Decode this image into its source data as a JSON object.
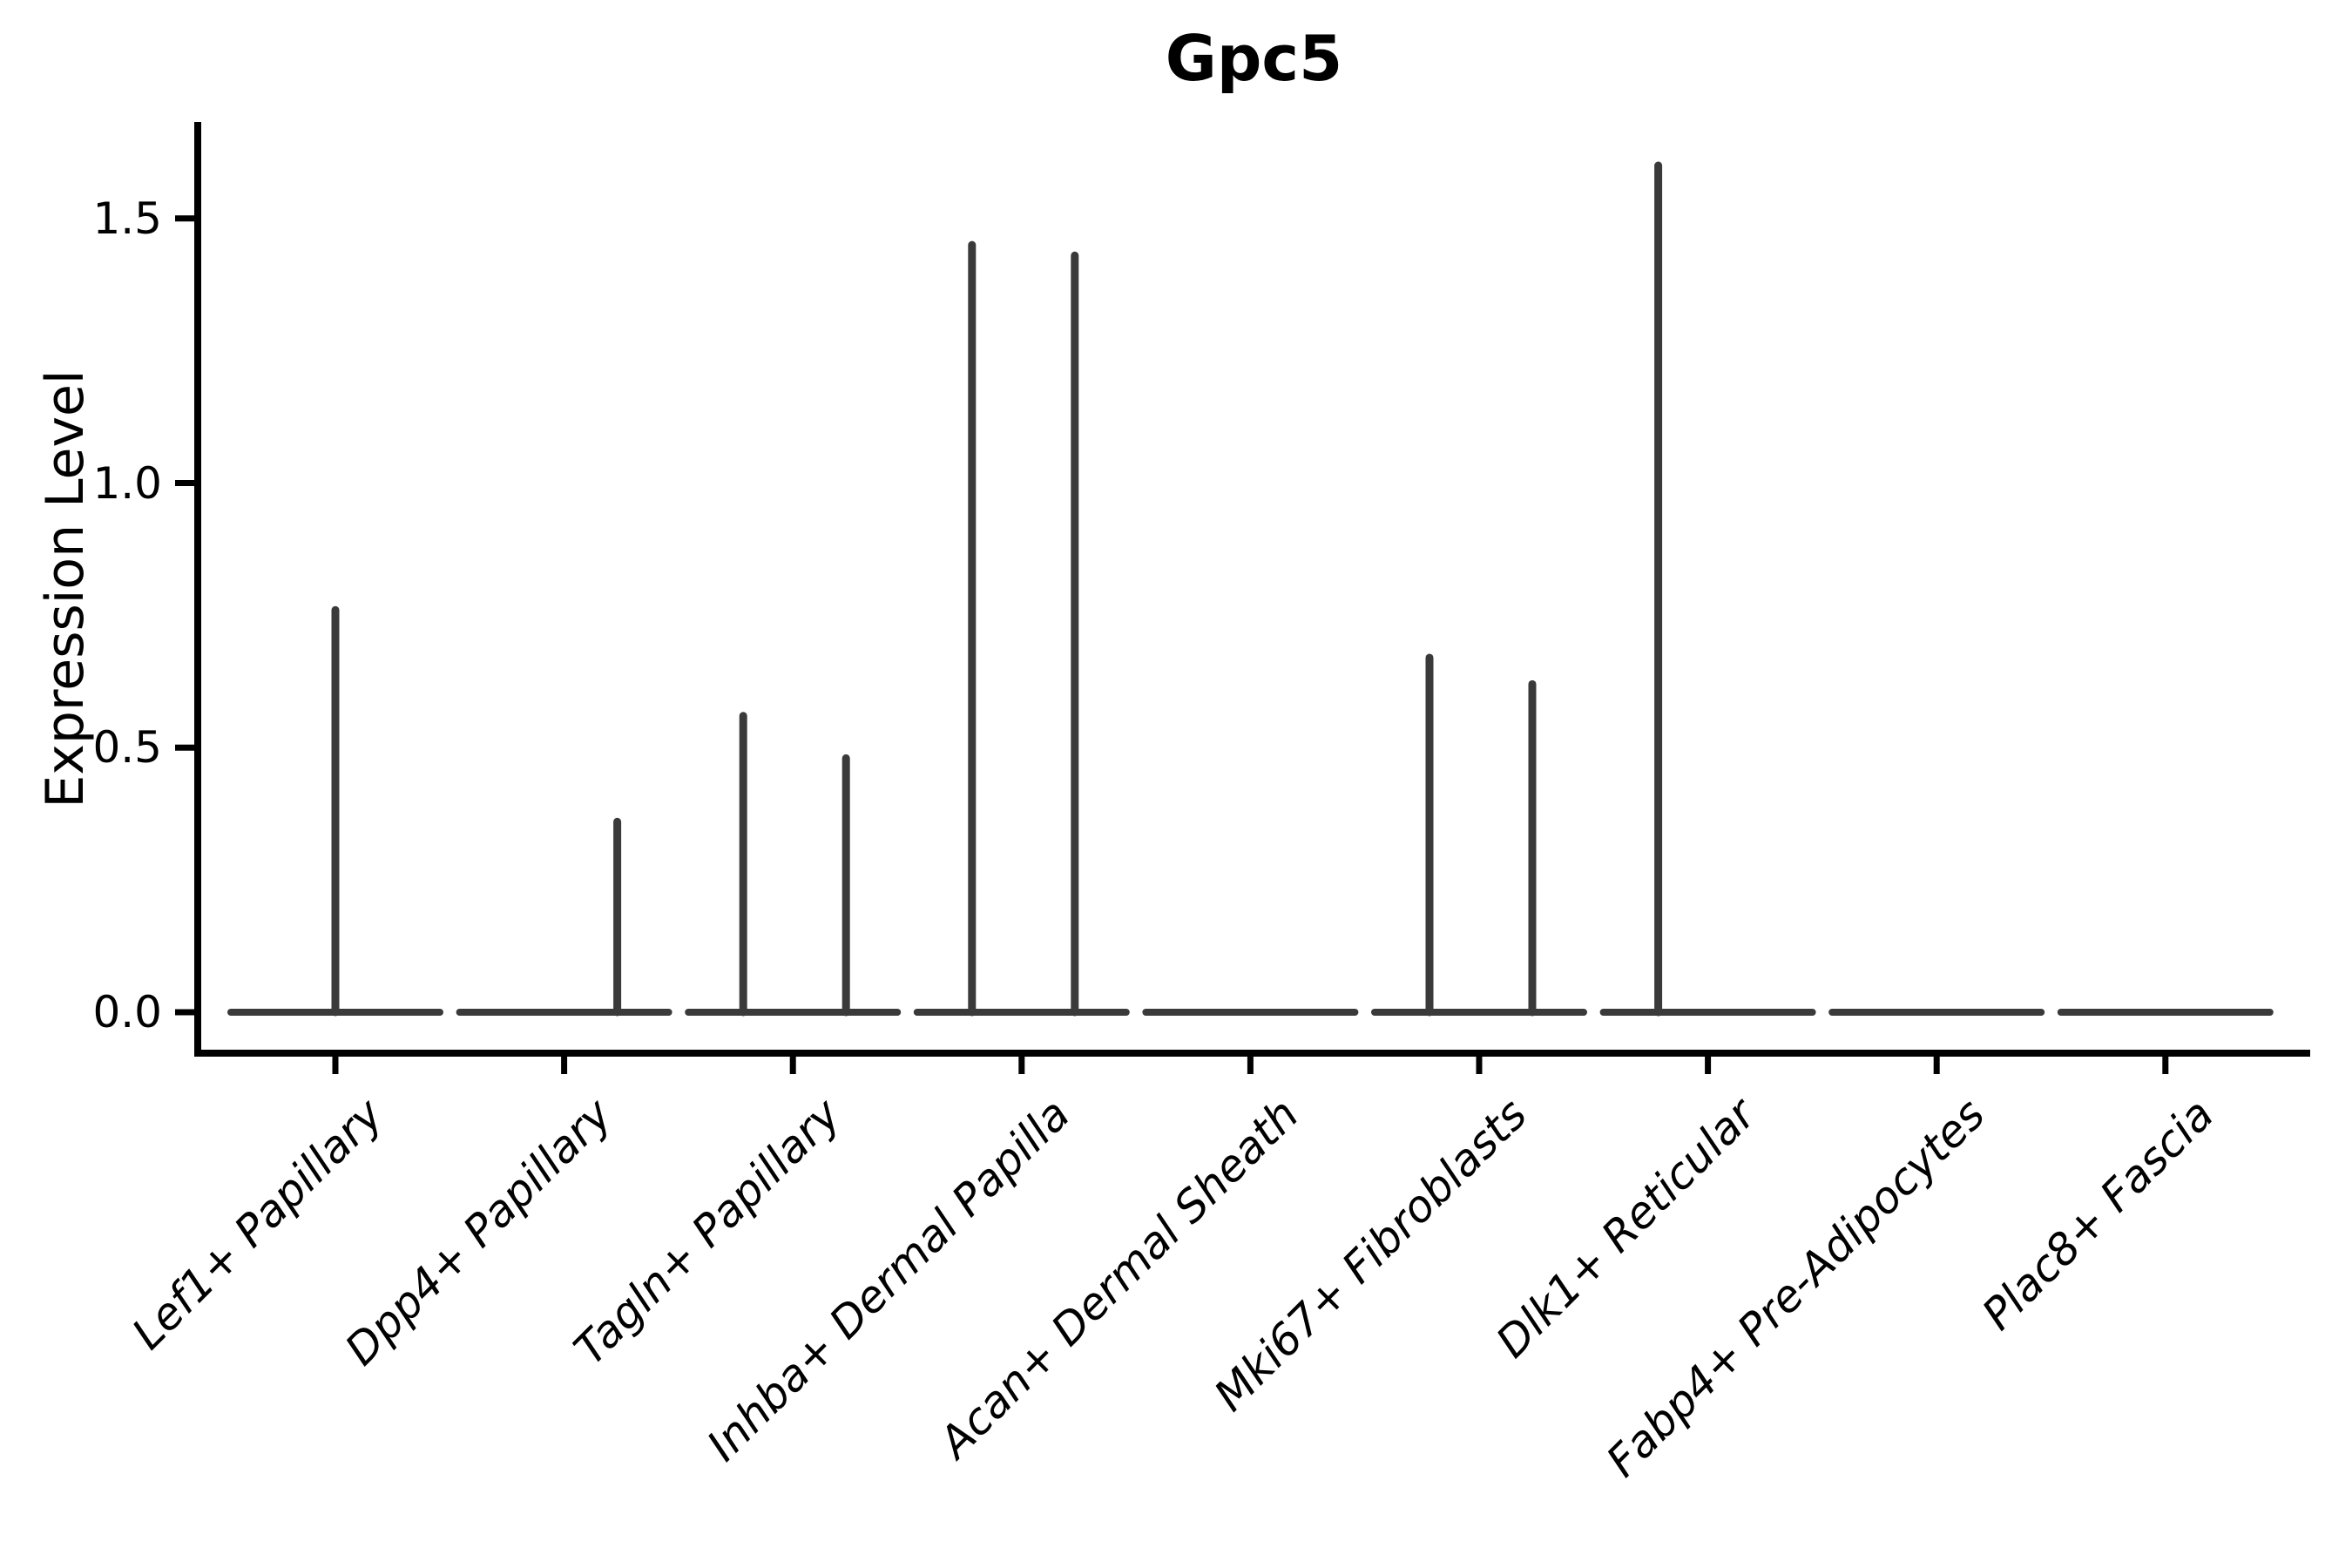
{
  "chart": {
    "title": "Gpc5",
    "ylabel": "Expression Level"
  },
  "chart_data": {
    "type": "violin",
    "title": "Gpc5",
    "xlabel": "",
    "ylabel": "Expression Level",
    "ylim": [
      -0.08,
      1.68
    ],
    "grid": false,
    "legend": "none",
    "yticks": [
      {
        "label": "0.0",
        "value": 0.0
      },
      {
        "label": "0.5",
        "value": 0.5
      },
      {
        "label": "1.0",
        "value": 1.0
      },
      {
        "label": "1.5",
        "value": 1.5
      }
    ],
    "categories": [
      "Lef1+ Papillary",
      "Dpp4+ Papillary",
      "Tagln+ Papillary",
      "Inhba+ Dermal Papilla",
      "Acan+ Dermal Sheath",
      "Mki67+ Fibroblasts",
      "Dlk1+ Reticular",
      "Fabp4+ Pre-Adipocytes",
      "Plac8+ Fascia"
    ],
    "violins": [
      {
        "label": "Lef1+ Papillary",
        "baseline_value": 0,
        "spikes": [
          {
            "side": "center",
            "value": 0.76
          }
        ]
      },
      {
        "label": "Dpp4+ Papillary",
        "baseline_value": 0,
        "spikes": [
          {
            "side": "right",
            "value": 0.36
          }
        ]
      },
      {
        "label": "Tagln+ Papillary",
        "baseline_value": 0,
        "spikes": [
          {
            "side": "left",
            "value": 0.56
          },
          {
            "side": "right",
            "value": 0.48
          }
        ]
      },
      {
        "label": "Inhba+ Dermal Papilla",
        "baseline_value": 0,
        "spikes": [
          {
            "side": "left",
            "value": 1.45
          },
          {
            "side": "right",
            "value": 1.43
          }
        ]
      },
      {
        "label": "Acan+ Dermal Sheath",
        "baseline_value": 0,
        "spikes": []
      },
      {
        "label": "Mki67+ Fibroblasts",
        "baseline_value": 0,
        "spikes": [
          {
            "side": "left",
            "value": 0.67
          },
          {
            "side": "right",
            "value": 0.62
          }
        ]
      },
      {
        "label": "Dlk1+ Reticular",
        "baseline_value": 0,
        "spikes": [
          {
            "side": "left",
            "value": 1.6
          }
        ]
      },
      {
        "label": "Fabp4+ Pre-Adipocytes",
        "baseline_value": 0,
        "spikes": []
      },
      {
        "label": "Plac8+ Fascia",
        "baseline_value": 0,
        "spikes": []
      }
    ],
    "colors": {
      "violin_line": "#3a3a3a",
      "axis": "#000000",
      "text": "#000000",
      "background": "#ffffff"
    }
  }
}
